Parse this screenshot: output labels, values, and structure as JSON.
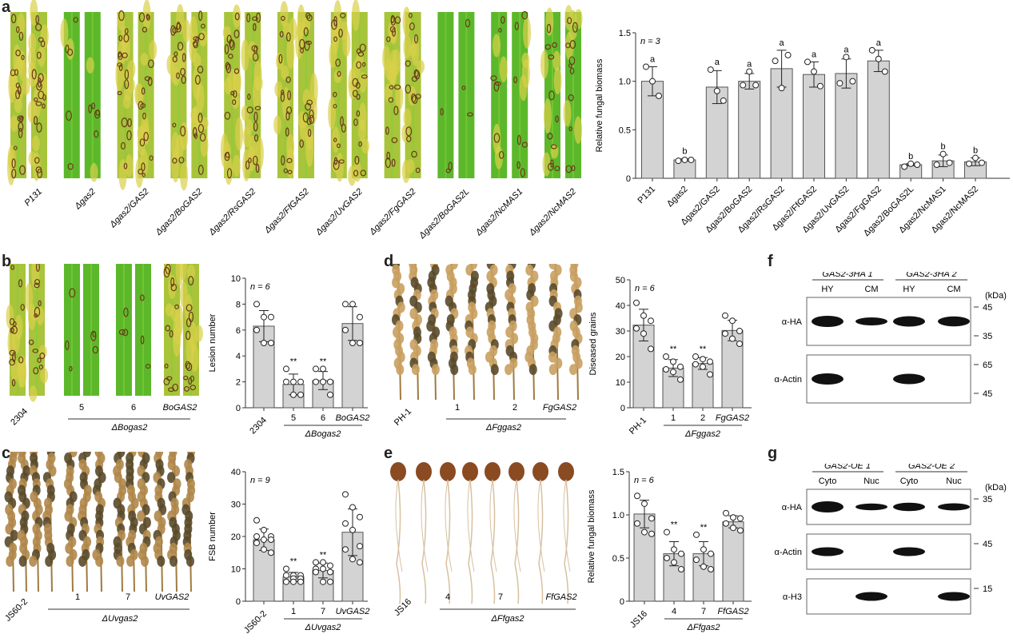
{
  "panels": {
    "a": "a",
    "b": "b",
    "c": "c",
    "d": "d",
    "e": "e",
    "f": "f",
    "g": "g"
  },
  "colors": {
    "bar": "#d3d3d3",
    "bar_edge": "#555555",
    "leaf_green": "#6fbf2a",
    "leaf_yellow": "#c8c83a",
    "spike": "#b8894a",
    "blot": "#111111"
  },
  "photo_a": {
    "labels": [
      "P131",
      "Δgas2",
      "Δgas2/GAS2",
      "Δgas2/BoGAS2",
      "Δgas2/RsGAS2",
      "Δgas2/FfGAS2",
      "Δgas2/UvGAS2",
      "Δgas2/FgGAS2",
      "Δgas2/BoGAS2L",
      "Δgas2/NcMAS1",
      "Δgas2/NcMAS2"
    ]
  },
  "photo_b": {
    "wt": "2304",
    "lines": [
      "5",
      "6",
      "BoGAS2"
    ],
    "group": "ΔBogas2"
  },
  "photo_c": {
    "wt": "JS60-2",
    "lines": [
      "1",
      "7",
      "UvGAS2"
    ],
    "group": "ΔUvgas2"
  },
  "photo_d": {
    "wt": "PH-1",
    "lines": [
      "1",
      "2",
      "FgGAS2"
    ],
    "group": "ΔFggas2"
  },
  "photo_e": {
    "wt": "JS16",
    "lines": [
      "4",
      "7",
      "FfGAS2"
    ],
    "group": "ΔFfgas2"
  },
  "chart_data": [
    {
      "id": "a",
      "type": "bar",
      "ylabel": "Relative fungal biomass",
      "annotation": "n = 3",
      "ylim": [
        0,
        1.5
      ],
      "yticks": [
        "0",
        "0.5",
        "1.0",
        "1.5"
      ],
      "categories": [
        "P131",
        "Δgas2",
        "Δgas2/GAS2",
        "Δgas2/BoGAS2",
        "Δgas2/RsGAS2",
        "Δgas2/FfGAS2",
        "Δgas2/UvGAS2",
        "Δgas2/FgGAS2",
        "Δgas2/BoGAS2L",
        "Δgas2/NcMAS1",
        "Δgas2/NcMAS2"
      ],
      "values": [
        1.0,
        0.19,
        0.94,
        1.0,
        1.13,
        1.07,
        1.08,
        1.21,
        0.14,
        0.18,
        0.17
      ],
      "errors": [
        0.15,
        0.01,
        0.17,
        0.08,
        0.19,
        0.13,
        0.15,
        0.11,
        0.01,
        0.06,
        0.04
      ],
      "points": [
        [
          1.15,
          1.0,
          0.85
        ],
        [
          0.18,
          0.19,
          0.19
        ],
        [
          1.12,
          0.9,
          0.8
        ],
        [
          0.96,
          1.1,
          0.96
        ],
        [
          1.21,
          0.93,
          1.27
        ],
        [
          1.2,
          1.1,
          0.95
        ],
        [
          0.98,
          1.25,
          1.0
        ],
        [
          1.32,
          1.23,
          1.1
        ],
        [
          0.12,
          0.15,
          0.14
        ],
        [
          0.14,
          0.25,
          0.16
        ],
        [
          0.15,
          0.21,
          0.16
        ]
      ],
      "sig": [
        "a",
        "b",
        "a",
        "a",
        "a",
        "a",
        "a",
        "a",
        "b",
        "b",
        "b"
      ]
    },
    {
      "id": "b",
      "type": "bar",
      "ylabel": "Lesion number",
      "annotation": "n = 6",
      "ylim": [
        0,
        10
      ],
      "yticks": [
        "0",
        "2",
        "4",
        "6",
        "8",
        "10"
      ],
      "categories": [
        "2304",
        "5",
        "6",
        "BoGAS2"
      ],
      "group_label": "ΔBogas2",
      "values": [
        6.3,
        1.8,
        2.1,
        6.5
      ],
      "errors": [
        1.2,
        0.8,
        0.7,
        1.3
      ],
      "points": [
        [
          8,
          7,
          7,
          6,
          5,
          5
        ],
        [
          3,
          2,
          2,
          2,
          1,
          1
        ],
        [
          3,
          3,
          2,
          2,
          2,
          1
        ],
        [
          8,
          8,
          7,
          6,
          5,
          5
        ]
      ],
      "sig": [
        "",
        "**",
        "**",
        ""
      ]
    },
    {
      "id": "c",
      "type": "bar",
      "ylabel": "FSB number",
      "annotation": "n = 9",
      "ylim": [
        0,
        40
      ],
      "yticks": [
        "0",
        "10",
        "20",
        "30",
        "40"
      ],
      "categories": [
        "JS60-2",
        "1",
        "7",
        "UvGAS2"
      ],
      "group_label": "ΔUvgas2",
      "values": [
        19,
        7.5,
        9.5,
        21.3
      ],
      "errors": [
        3.3,
        1.4,
        2.3,
        7.2
      ],
      "points": [
        [
          25,
          22,
          20,
          20,
          19,
          19,
          18,
          16,
          15
        ],
        [
          10,
          8,
          8,
          8,
          7,
          7,
          6,
          6,
          6
        ],
        [
          12,
          12,
          11,
          10,
          10,
          9,
          9,
          6,
          6
        ],
        [
          33,
          29,
          26,
          24,
          22,
          17,
          16,
          13,
          12
        ]
      ],
      "sig": [
        "",
        "**",
        "**",
        ""
      ]
    },
    {
      "id": "d",
      "type": "bar",
      "ylabel": "Diseased grains",
      "annotation": "n = 6",
      "ylim": [
        0,
        50
      ],
      "yticks": [
        "0",
        "10",
        "20",
        "30",
        "40",
        "50"
      ],
      "categories": [
        "PH-1",
        "1",
        "2",
        "FgGAS2"
      ],
      "group_label": "ΔFggas2",
      "values": [
        32.3,
        15.5,
        17.3,
        30.2
      ],
      "errors": [
        6.2,
        3.3,
        2.3,
        4.0
      ],
      "points": [
        [
          41,
          36,
          34,
          31,
          29,
          23
        ],
        [
          20,
          18,
          16,
          15,
          14,
          11
        ],
        [
          20,
          19,
          18,
          17,
          16,
          13
        ],
        [
          36,
          34,
          30,
          29,
          27,
          25
        ]
      ],
      "sig": [
        "",
        "**",
        "**",
        ""
      ]
    },
    {
      "id": "e",
      "type": "bar",
      "ylabel": "Relative fungal biomass",
      "annotation": "n = 6",
      "ylim": [
        0,
        1.5
      ],
      "yticks": [
        "0",
        "0.5",
        "1.0",
        "1.5"
      ],
      "categories": [
        "JS16",
        "4",
        "7",
        "FfGAS2"
      ],
      "group_label": "ΔFfgas2",
      "values": [
        1.01,
        0.55,
        0.55,
        0.92
      ],
      "errors": [
        0.16,
        0.14,
        0.14,
        0.07
      ],
      "points": [
        [
          1.22,
          1.13,
          0.96,
          0.9,
          0.8,
          0.78
        ],
        [
          0.8,
          0.6,
          0.55,
          0.5,
          0.45,
          0.37
        ],
        [
          0.77,
          0.6,
          0.55,
          0.48,
          0.4,
          0.37
        ],
        [
          1.02,
          0.97,
          0.96,
          0.9,
          0.85,
          0.82
        ]
      ],
      "sig": [
        "",
        "**",
        "**",
        ""
      ]
    }
  ],
  "blot_f": {
    "groups": [
      "GAS2-3HA 1",
      "GAS2-3HA 2"
    ],
    "lanes": [
      "HY",
      "CM",
      "HY",
      "CM"
    ],
    "unit": "(kDa)",
    "rows": [
      {
        "label": "α-HA",
        "markers": [
          "45",
          "35"
        ],
        "bands": [
          1.0,
          0.6,
          0.9,
          0.85
        ]
      },
      {
        "label": "α-Actin",
        "markers": [
          "65",
          "45"
        ],
        "bands": [
          1.0,
          0,
          0.9,
          0
        ]
      }
    ]
  },
  "blot_g": {
    "groups": [
      "GAS2-OE 1",
      "GAS2-OE 2"
    ],
    "lanes": [
      "Cyto",
      "Nuc",
      "Cyto",
      "Nuc"
    ],
    "unit": "(kDa)",
    "rows": [
      {
        "label": "α-HA",
        "markers": [
          "35"
        ],
        "bands": [
          1.0,
          0.45,
          0.65,
          0.5
        ]
      },
      {
        "label": "α-Actin",
        "markers": [
          "45"
        ],
        "bands": [
          0.7,
          0,
          0.7,
          0
        ]
      },
      {
        "label": "α-H3",
        "markers": [
          "15"
        ],
        "bands": [
          0,
          0.7,
          0,
          0.7
        ]
      }
    ]
  }
}
